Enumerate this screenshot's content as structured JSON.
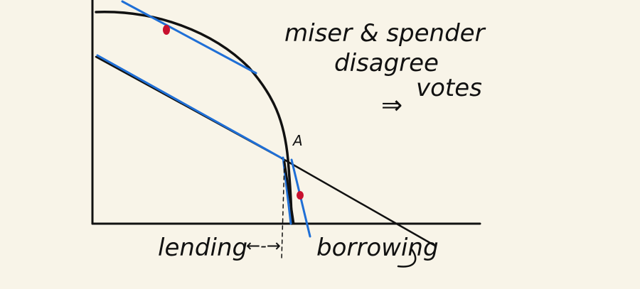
{
  "colors": {
    "paper": "#f8f4e8",
    "ink": "#111111",
    "highlight": "#1f6fd6",
    "dot": "#c8102e"
  },
  "annotations": {
    "line1": "miser & spender",
    "line2": "disagree",
    "arrow": "⇒",
    "line3": "votes",
    "point_label": "A",
    "left_label": "lending",
    "arrow_lr": "←-→",
    "right_label": "borrowing"
  }
}
